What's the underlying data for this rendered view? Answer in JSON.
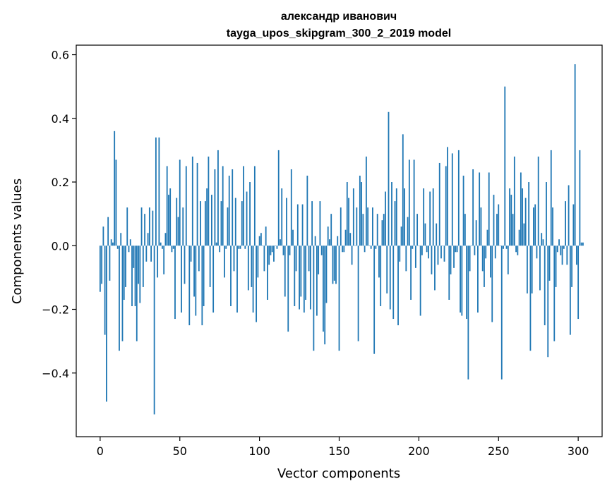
{
  "chart_data": {
    "type": "bar",
    "title_line1": "александр иванович",
    "title_line2": "tayga_upos_skipgram_300_2_2019 model",
    "xlabel": "Vector components",
    "ylabel": "Components values",
    "xlim": [
      -15,
      315
    ],
    "ylim": [
      -0.6,
      0.63
    ],
    "xticks": [
      0,
      50,
      100,
      150,
      200,
      250,
      300
    ],
    "xtick_labels": [
      "0",
      "50",
      "100",
      "150",
      "200",
      "250",
      "300"
    ],
    "yticks": [
      -0.4,
      -0.2,
      0.0,
      0.2,
      0.4,
      0.6
    ],
    "ytick_labels": [
      "−0.4",
      "−0.2",
      "0.0",
      "0.2",
      "0.4",
      "0.6"
    ],
    "bar_color": "#1f77b4",
    "values": [
      -0.145,
      -0.12,
      0.06,
      -0.28,
      -0.49,
      0.09,
      -0.11,
      0.02,
      0.01,
      0.36,
      0.27,
      -0.01,
      -0.33,
      0.04,
      -0.3,
      -0.17,
      -0.13,
      0.12,
      -0.02,
      0.02,
      -0.19,
      -0.07,
      -0.19,
      -0.3,
      -0.12,
      -0.18,
      0.12,
      -0.13,
      0.1,
      -0.05,
      0.04,
      0.12,
      -0.05,
      0.11,
      -0.53,
      0.34,
      -0.1,
      0.34,
      0.01,
      -0.01,
      -0.09,
      0.04,
      0.25,
      0.16,
      0.18,
      -0.02,
      -0.01,
      -0.23,
      0.15,
      0.09,
      0.27,
      -0.21,
      0.12,
      -0.12,
      0.25,
      0.0,
      -0.25,
      -0.05,
      0.28,
      -0.16,
      -0.22,
      0.26,
      -0.08,
      0.14,
      -0.25,
      -0.19,
      0.14,
      0.18,
      0.28,
      -0.13,
      0.16,
      -0.21,
      0.24,
      0.01,
      0.3,
      -0.02,
      0.14,
      0.25,
      -0.1,
      -0.01,
      0.12,
      0.22,
      -0.19,
      0.24,
      -0.08,
      0.15,
      -0.21,
      -0.01,
      -0.01,
      0.14,
      0.25,
      -0.01,
      0.17,
      -0.14,
      0.2,
      -0.13,
      -0.21,
      0.25,
      -0.24,
      -0.1,
      0.03,
      0.04,
      0.0,
      -0.08,
      0.06,
      -0.17,
      -0.06,
      -0.03,
      -0.02,
      -0.05,
      0.0,
      -0.01,
      0.3,
      0.02,
      0.18,
      -0.03,
      -0.16,
      0.15,
      -0.27,
      -0.03,
      0.24,
      0.05,
      -0.19,
      -0.08,
      0.13,
      -0.2,
      -0.16,
      0.13,
      -0.21,
      -0.17,
      0.22,
      -0.08,
      -0.2,
      0.14,
      -0.33,
      0.03,
      -0.22,
      -0.09,
      0.14,
      -0.03,
      -0.27,
      -0.31,
      -0.18,
      0.06,
      0.02,
      0.1,
      -0.12,
      -0.11,
      -0.12,
      0.03,
      -0.33,
      0.12,
      -0.02,
      -0.02,
      0.05,
      0.2,
      0.15,
      0.04,
      -0.06,
      0.18,
      0.0,
      0.12,
      -0.3,
      0.22,
      0.2,
      0.1,
      -0.02,
      0.28,
      0.12,
      0.0,
      -0.01,
      0.12,
      -0.34,
      -0.01,
      0.1,
      -0.1,
      -0.19,
      0.08,
      0.1,
      0.17,
      -0.15,
      0.42,
      -0.2,
      0.2,
      -0.23,
      0.14,
      0.18,
      -0.25,
      -0.05,
      0.06,
      0.35,
      0.18,
      -0.08,
      0.09,
      0.27,
      -0.17,
      -0.01,
      0.27,
      -0.07,
      0.1,
      0.0,
      -0.22,
      -0.03,
      0.18,
      0.07,
      -0.02,
      -0.04,
      0.17,
      -0.09,
      0.18,
      -0.14,
      0.07,
      -0.06,
      0.26,
      -0.04,
      0.0,
      -0.05,
      0.25,
      0.31,
      -0.17,
      -0.09,
      0.29,
      -0.07,
      -0.02,
      -0.02,
      0.3,
      -0.21,
      -0.22,
      0.22,
      0.1,
      -0.23,
      -0.42,
      -0.08,
      0.0,
      0.24,
      -0.03,
      0.08,
      -0.21,
      0.23,
      0.12,
      -0.08,
      -0.13,
      -0.04,
      0.05,
      0.23,
      -0.1,
      -0.24,
      0.16,
      -0.04,
      0.1,
      0.13,
      0.0,
      -0.42,
      -0.01,
      0.5,
      -0.01,
      -0.09,
      0.18,
      0.16,
      0.1,
      0.28,
      -0.02,
      -0.03,
      0.05,
      0.23,
      0.18,
      0.07,
      0.15,
      -0.15,
      0.2,
      -0.33,
      -0.15,
      0.12,
      0.13,
      -0.04,
      0.28,
      -0.14,
      0.04,
      0.02,
      -0.25,
      0.2,
      -0.35,
      -0.11,
      0.3,
      0.12,
      -0.3,
      -0.13,
      -0.02,
      0.02,
      -0.03,
      -0.06,
      -0.01,
      0.14,
      -0.06,
      0.19,
      -0.28,
      -0.13,
      0.13,
      0.57,
      -0.06,
      -0.23,
      0.3,
      0.01,
      0.01
    ]
  }
}
